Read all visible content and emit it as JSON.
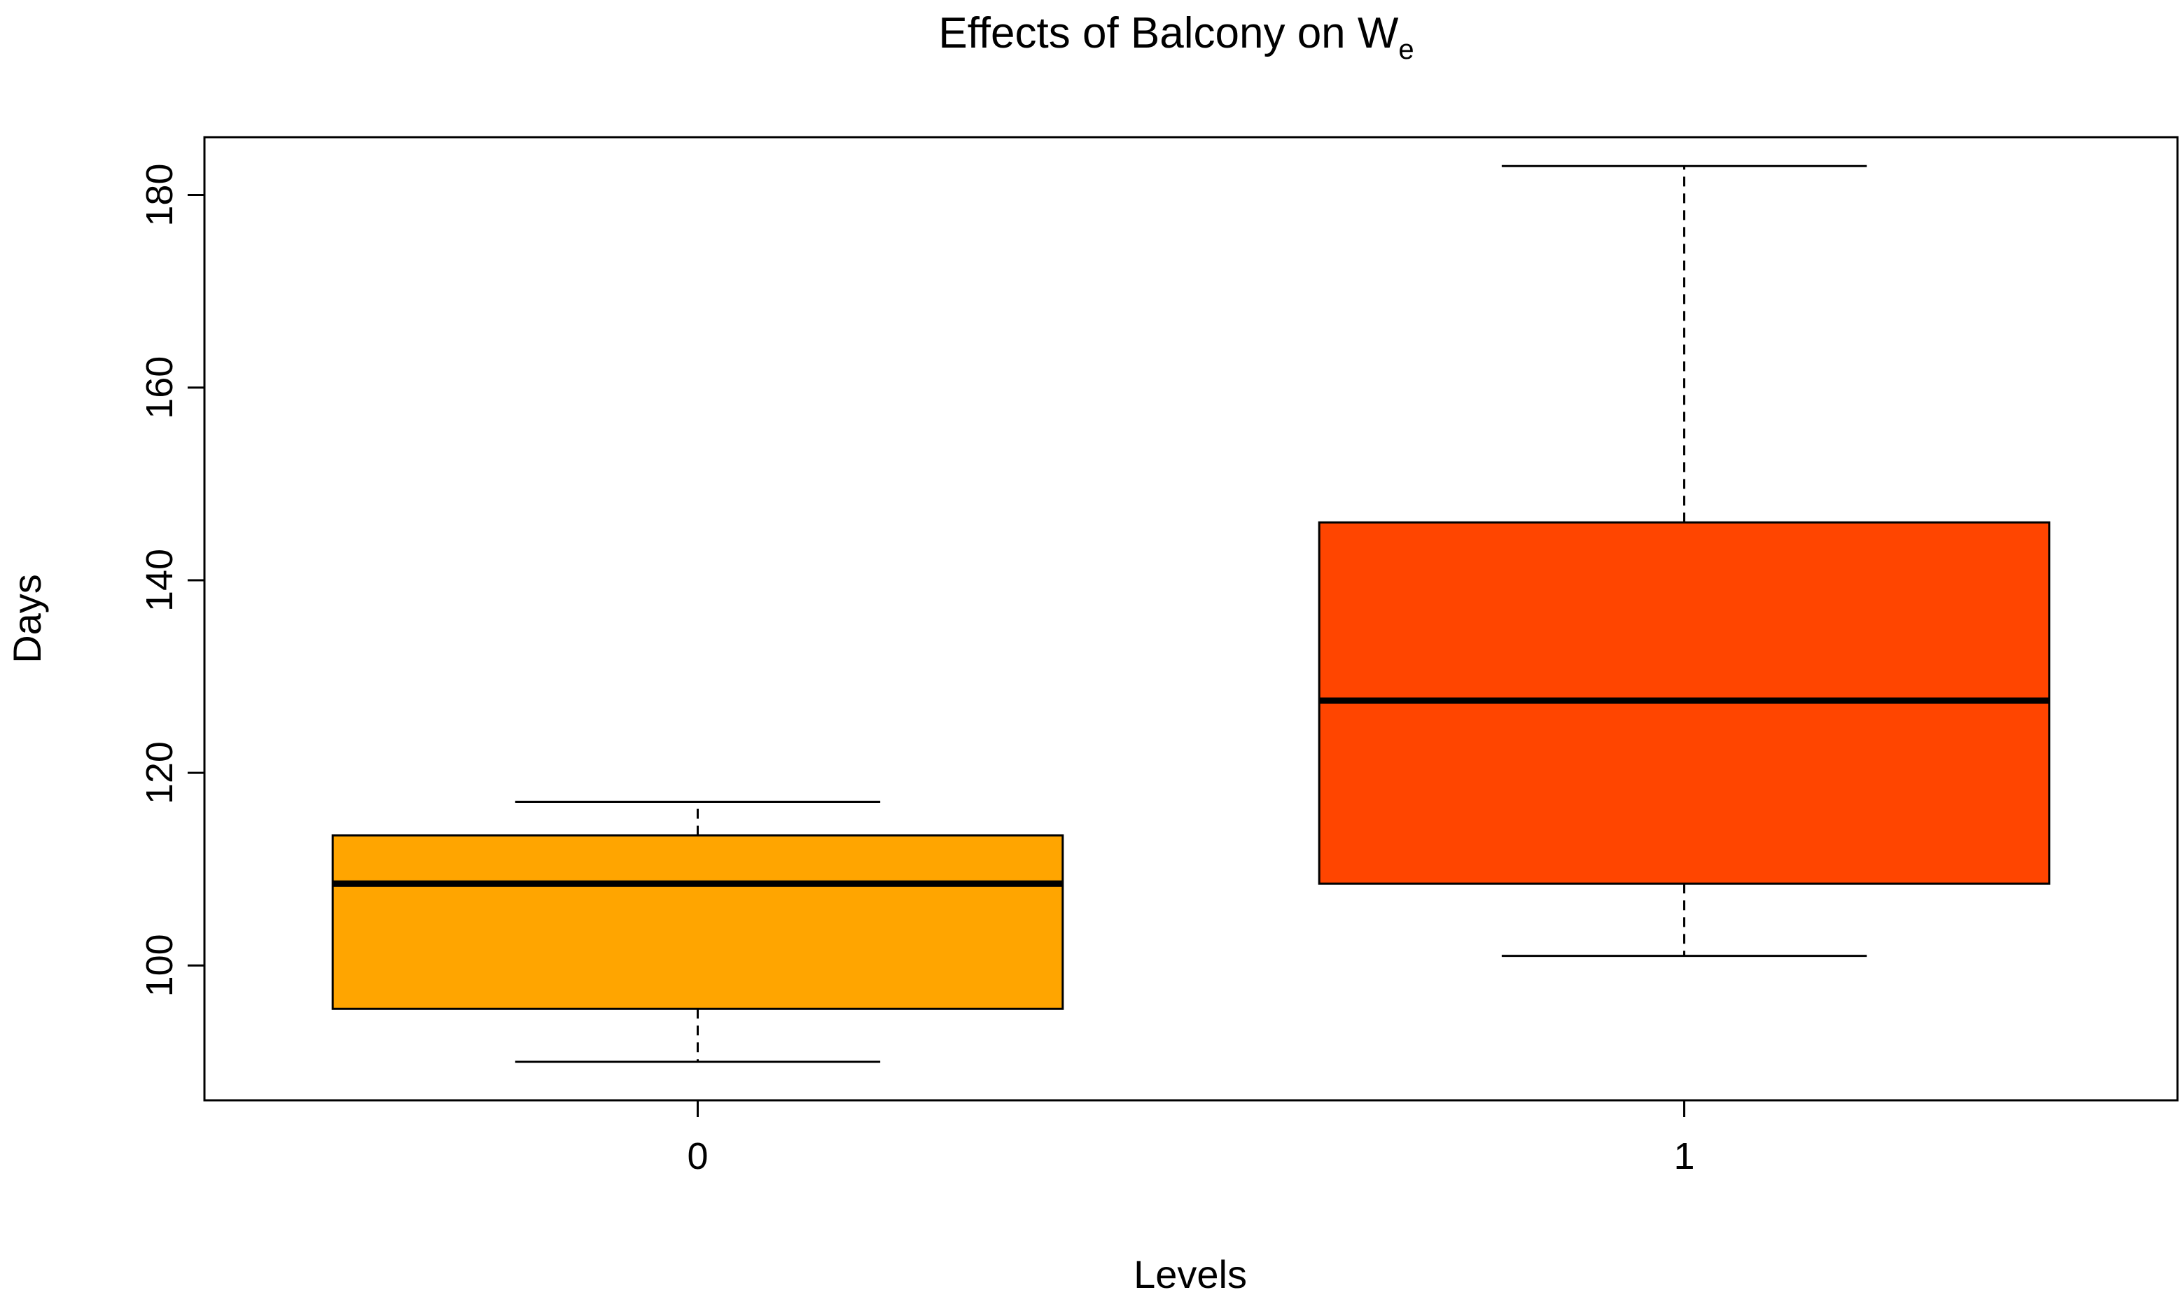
{
  "chart_data": {
    "type": "boxplot",
    "title": "Effects of Balcony on W",
    "title_subscript": "e",
    "xlabel": "Levels",
    "ylabel": "Days",
    "ylim": [
      86,
      186
    ],
    "yticks": [
      100,
      120,
      140,
      160,
      180
    ],
    "grid": false,
    "categories": [
      "0",
      "1"
    ],
    "boxes": [
      {
        "category": "0",
        "whisker_low": 90,
        "q1": 95.5,
        "median": 108.5,
        "q3": 113.5,
        "whisker_high": 117,
        "color": "#FFA500"
      },
      {
        "category": "1",
        "whisker_low": 101,
        "q1": 108.5,
        "median": 127.5,
        "q3": 146,
        "whisker_high": 183,
        "color": "#FF4500"
      }
    ]
  }
}
